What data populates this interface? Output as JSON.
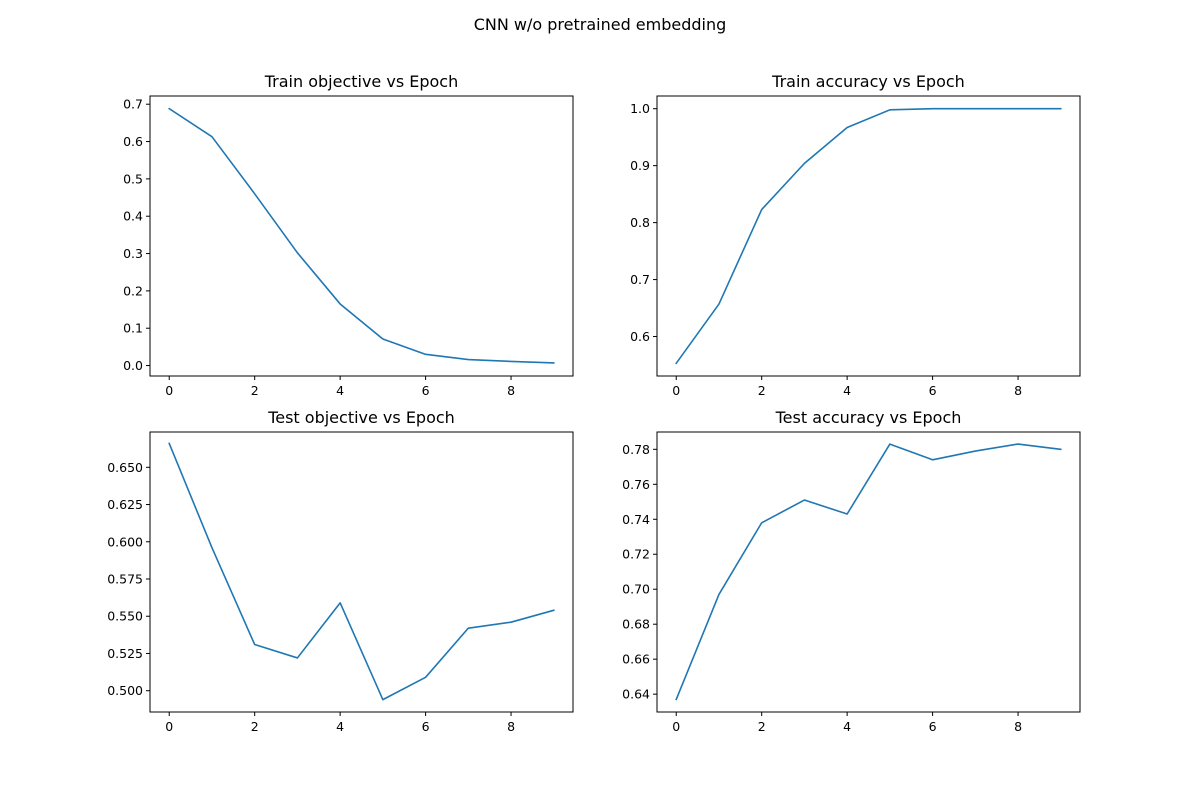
{
  "figure": {
    "title": "CNN w/o pretrained embedding",
    "line_color": "#1f77b4"
  },
  "chart_data": [
    {
      "type": "line",
      "title": "Train objective vs Epoch",
      "xlabel": "",
      "ylabel": "",
      "grid": false,
      "x": [
        0,
        1,
        2,
        3,
        4,
        5,
        6,
        7,
        8,
        9
      ],
      "series": [
        {
          "values": [
            0.688,
            0.613,
            0.46,
            0.302,
            0.165,
            0.071,
            0.03,
            0.016,
            0.011,
            0.007
          ]
        }
      ],
      "xlim": [
        -0.45,
        9.45
      ],
      "ylim": [
        -0.028,
        0.722
      ],
      "xticks": [
        0,
        2,
        4,
        6,
        8
      ],
      "xtick_labels": [
        "0",
        "2",
        "4",
        "6",
        "8"
      ],
      "yticks": [
        0.0,
        0.1,
        0.2,
        0.3,
        0.4,
        0.5,
        0.6,
        0.7
      ],
      "ytick_labels": [
        "0.0",
        "0.1",
        "0.2",
        "0.3",
        "0.4",
        "0.5",
        "0.6",
        "0.7"
      ]
    },
    {
      "type": "line",
      "title": "Train accuracy vs Epoch",
      "xlabel": "",
      "ylabel": "",
      "grid": false,
      "x": [
        0,
        1,
        2,
        3,
        4,
        5,
        6,
        7,
        8,
        9
      ],
      "series": [
        {
          "values": [
            0.553,
            0.657,
            0.823,
            0.904,
            0.967,
            0.998,
            1.0,
            1.0,
            1.0,
            1.0
          ]
        }
      ],
      "xlim": [
        -0.45,
        9.45
      ],
      "ylim": [
        0.5307,
        1.0223
      ],
      "xticks": [
        0,
        2,
        4,
        6,
        8
      ],
      "xtick_labels": [
        "0",
        "2",
        "4",
        "6",
        "8"
      ],
      "yticks": [
        0.6,
        0.7,
        0.8,
        0.9,
        1.0
      ],
      "ytick_labels": [
        "0.6",
        "0.7",
        "0.8",
        "0.9",
        "1.0"
      ]
    },
    {
      "type": "line",
      "title": "Test objective vs Epoch",
      "xlabel": "",
      "ylabel": "",
      "grid": false,
      "x": [
        0,
        1,
        2,
        3,
        4,
        5,
        6,
        7,
        8,
        9
      ],
      "series": [
        {
          "values": [
            0.666,
            0.596,
            0.531,
            0.522,
            0.559,
            0.494,
            0.509,
            0.542,
            0.546,
            0.554
          ]
        }
      ],
      "xlim": [
        -0.45,
        9.45
      ],
      "ylim": [
        0.4857,
        0.6737
      ],
      "xticks": [
        0,
        2,
        4,
        6,
        8
      ],
      "xtick_labels": [
        "0",
        "2",
        "4",
        "6",
        "8"
      ],
      "yticks": [
        0.5,
        0.525,
        0.55,
        0.575,
        0.6,
        0.625,
        0.65
      ],
      "ytick_labels": [
        "0.500",
        "0.525",
        "0.550",
        "0.575",
        "0.600",
        "0.625",
        "0.650"
      ]
    },
    {
      "type": "line",
      "title": "Test accuracy vs Epoch",
      "xlabel": "",
      "ylabel": "",
      "grid": false,
      "x": [
        0,
        1,
        2,
        3,
        4,
        5,
        6,
        7,
        8,
        9
      ],
      "series": [
        {
          "values": [
            0.637,
            0.697,
            0.738,
            0.751,
            0.743,
            0.783,
            0.774,
            0.779,
            0.783,
            0.78
          ]
        }
      ],
      "xlim": [
        -0.45,
        9.45
      ],
      "ylim": [
        0.6298,
        0.7899
      ],
      "xticks": [
        0,
        2,
        4,
        6,
        8
      ],
      "xtick_labels": [
        "0",
        "2",
        "4",
        "6",
        "8"
      ],
      "yticks": [
        0.64,
        0.66,
        0.68,
        0.7,
        0.72,
        0.74,
        0.76,
        0.78
      ],
      "ytick_labels": [
        "0.64",
        "0.66",
        "0.68",
        "0.70",
        "0.72",
        "0.74",
        "0.76",
        "0.78"
      ]
    }
  ]
}
